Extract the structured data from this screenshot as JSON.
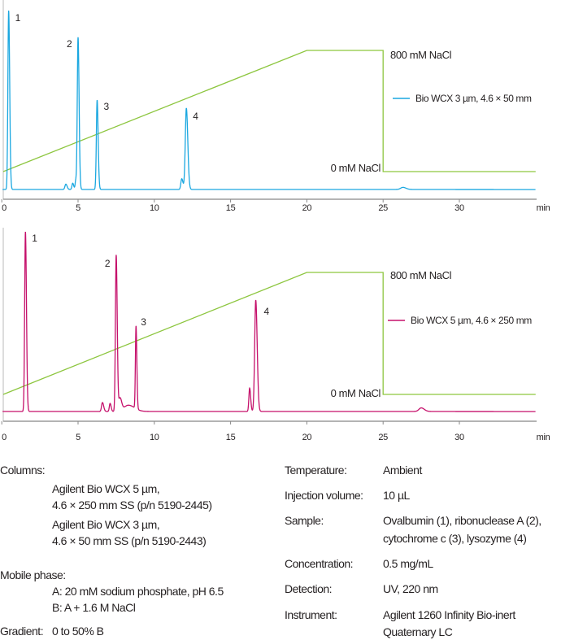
{
  "chart_data": [
    {
      "type": "line",
      "xlabel": "min",
      "xlim": [
        0,
        35
      ],
      "xticks": [
        "0",
        "5",
        "10",
        "15",
        "20",
        "25",
        "30"
      ],
      "trace_color": "#1aa7e0",
      "legend": "Bio WCX 3 µm, 4.6 × 50 mm",
      "legend_placement": "right",
      "peaks": [
        {
          "label": "1",
          "t": 0.45,
          "height": 1.0,
          "width": 0.05
        },
        {
          "label": "2",
          "t": 5.0,
          "height": 0.85,
          "width": 0.05
        },
        {
          "label": "3",
          "t": 6.25,
          "height": 0.5,
          "width": 0.05
        },
        {
          "label": "4",
          "t": 12.1,
          "height": 0.455,
          "width": 0.07
        }
      ],
      "minor_peaks": [
        {
          "t": 4.2,
          "height": 0.03,
          "width": 0.06
        },
        {
          "t": 4.65,
          "height": 0.035,
          "width": 0.05
        },
        {
          "t": 4.85,
          "height": 0.05,
          "width": 0.04
        },
        {
          "t": 11.8,
          "height": 0.06,
          "width": 0.06
        },
        {
          "t": 26.3,
          "height": 0.012,
          "width": 0.15
        }
      ],
      "gradient": {
        "color": "#8dc63f",
        "unit": "mM NaCl",
        "points": [
          [
            0,
            0
          ],
          [
            20,
            800
          ],
          [
            25,
            800
          ],
          [
            25,
            0
          ],
          [
            35,
            0
          ]
        ],
        "high_label": "800 mM NaCl",
        "low_label": "0 mM NaCl"
      }
    },
    {
      "type": "line",
      "xlabel": "min",
      "xlim": [
        0,
        35
      ],
      "xticks": [
        "0",
        "5",
        "10",
        "15",
        "20",
        "25",
        "30"
      ],
      "trace_color": "#c5106b",
      "legend": "Bio WCX 5 µm, 4.6 × 250 mm",
      "legend_placement": "right",
      "peaks": [
        {
          "label": "1",
          "t": 1.55,
          "height": 1.0,
          "width": 0.05
        },
        {
          "label": "2",
          "t": 7.5,
          "height": 0.87,
          "width": 0.05
        },
        {
          "label": "3",
          "t": 8.8,
          "height": 0.46,
          "width": 0.04
        },
        {
          "label": "4",
          "t": 16.65,
          "height": 0.62,
          "width": 0.07
        }
      ],
      "minor_peaks": [
        {
          "t": 6.6,
          "height": 0.05,
          "width": 0.06
        },
        {
          "t": 7.1,
          "height": 0.045,
          "width": 0.05
        },
        {
          "t": 7.75,
          "height": 0.07,
          "width": 0.08
        },
        {
          "t": 8.3,
          "height": 0.035,
          "width": 0.3
        },
        {
          "t": 16.25,
          "height": 0.13,
          "width": 0.05
        },
        {
          "t": 27.5,
          "height": 0.02,
          "width": 0.15
        }
      ],
      "gradient": {
        "color": "#8dc63f",
        "unit": "mM NaCl",
        "points": [
          [
            0,
            0
          ],
          [
            20,
            800
          ],
          [
            25,
            800
          ],
          [
            25,
            0
          ],
          [
            35,
            0
          ]
        ],
        "high_label": "800 mM NaCl",
        "low_label": "0 mM NaCl"
      }
    }
  ],
  "conditions": {
    "left": {
      "columns_label": "Columns:",
      "columns": [
        [
          "Agilent Bio WCX 5 µm,",
          "4.6 × 250 mm SS (p/n 5190-2445)"
        ],
        [
          "Agilent Bio WCX 3 µm,",
          "4.6 × 50 mm SS (p/n 5190-2443)"
        ]
      ],
      "mobile_phase_label": "Mobile phase:",
      "mobile_phase": [
        "A: 20 mM sodium phosphate, pH 6.5",
        "B: A + 1.6 M NaCl"
      ],
      "gradient_label": "Gradient:",
      "gradient_value": "0 to 50% B"
    },
    "right": [
      {
        "label": "Temperature:",
        "value": [
          "Ambient"
        ]
      },
      {
        "label": "Injection volume:",
        "value": [
          "10 µL"
        ]
      },
      {
        "label": "Sample:",
        "value": [
          "Ovalbumin (1), ribonuclease A (2),",
          "cytochrome c (3), lysozyme (4)"
        ]
      },
      {
        "label": "Concentration:",
        "value": [
          "0.5 mg/mL"
        ]
      },
      {
        "label": "Detection:",
        "value": [
          "UV, 220 nm"
        ]
      },
      {
        "label": "Instrument:",
        "value": [
          "Agilent 1260 Infinity Bio-inert",
          "Quaternary LC"
        ]
      }
    ]
  }
}
